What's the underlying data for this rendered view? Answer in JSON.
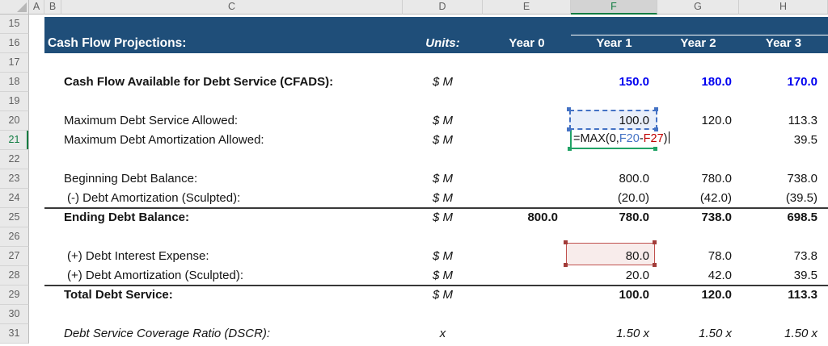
{
  "sheet": {
    "column_headers": [
      "A",
      "B",
      "C",
      "D",
      "E",
      "F",
      "G",
      "H"
    ],
    "row_headers": [
      15,
      16,
      17,
      18,
      19,
      20,
      21,
      22,
      23,
      24,
      25,
      26,
      27,
      28,
      29,
      30,
      31
    ],
    "selection": {
      "selected_column": "F",
      "active_row": 21,
      "edit_cell": "F21",
      "blue_ref_cell": "F20",
      "red_ref_cell": "F27"
    }
  },
  "banner": {
    "title": "Cash Flow Projections:",
    "units_label": "Units:",
    "year_labels": [
      "Year 0",
      "Year 1",
      "Year 2",
      "Year 3"
    ]
  },
  "formula": {
    "prefix": "=MAX(0,",
    "ref1": "F20",
    "operator": "-",
    "ref2": "F27",
    "suffix": ")"
  },
  "rows": [
    {
      "row": 18,
      "label": "Cash Flow Available for Debt Service (CFADS):",
      "bold": true,
      "units": "$ M",
      "values": {
        "F": "150.0",
        "G": "180.0",
        "H": "170.0"
      },
      "values_bold": true,
      "values_color": "blue"
    },
    {
      "row": 20,
      "label": "Maximum Debt Service Allowed:",
      "units": "$ M",
      "values": {
        "F": "100.0",
        "G": "120.0",
        "H": "113.3"
      }
    },
    {
      "row": 21,
      "label": "Maximum Debt Amortization Allowed:",
      "units": "$ M",
      "values": {
        "H": "39.5"
      },
      "formula_cell": true
    },
    {
      "row": 23,
      "label": "Beginning Debt Balance:",
      "units": "$ M",
      "values": {
        "F": "800.0",
        "G": "780.0",
        "H": "738.0"
      }
    },
    {
      "row": 24,
      "label": "(-) Debt Amortization (Sculpted):",
      "indent": true,
      "units": "$ M",
      "values": {
        "F": "(20.0)",
        "G": "(42.0)",
        "H": "(39.5)"
      }
    },
    {
      "row": 25,
      "label": "Ending Debt Balance:",
      "bold": true,
      "units": "$ M",
      "values": {
        "E": "800.0",
        "F": "780.0",
        "G": "738.0",
        "H": "698.5"
      },
      "values_bold": true,
      "top_border": true
    },
    {
      "row": 27,
      "label": "(+) Debt Interest Expense:",
      "indent": true,
      "units": "$ M",
      "values": {
        "F": "80.0",
        "G": "78.0",
        "H": "73.8"
      }
    },
    {
      "row": 28,
      "label": "(+) Debt Amortization (Sculpted):",
      "indent": true,
      "units": "$ M",
      "values": {
        "F": "20.0",
        "G": "42.0",
        "H": "39.5"
      }
    },
    {
      "row": 29,
      "label": "Total Debt Service:",
      "bold": true,
      "units": "$ M",
      "values": {
        "F": "100.0",
        "G": "120.0",
        "H": "113.3"
      },
      "values_bold": true,
      "top_border": true
    },
    {
      "row": 31,
      "label": "Debt Service Coverage Ratio (DSCR):",
      "italic": true,
      "units": "x",
      "values": {
        "F": "1.50 x",
        "G": "1.50 x",
        "H": "1.50 x"
      },
      "values_italic": true
    }
  ],
  "colors": {
    "banner_bg": "#1F4E79",
    "banner_text": "#FFFFFF",
    "value_blue": "#0000F0",
    "ref_blue": "#4472C4",
    "ref_red": "#C00000",
    "box_red_border": "#C0504D",
    "box_red_fill": "#F8ECEB",
    "box_blue_fill": "#E9EFFA",
    "edit_green": "#21A366",
    "header_green": "#107C41",
    "total_border": "#383838"
  }
}
